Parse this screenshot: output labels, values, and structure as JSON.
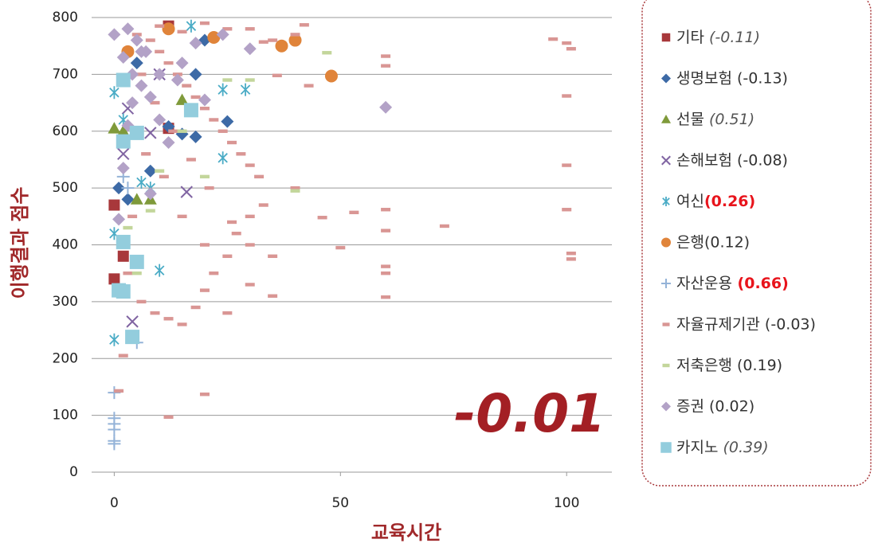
{
  "chart_data": {
    "type": "scatter",
    "x_label": "교육시간",
    "y_label": "이행결과 점수",
    "annotation": "-0.01",
    "xlim": [
      -5,
      110
    ],
    "xticks": [
      0,
      50,
      100
    ],
    "ylim": [
      0,
      800
    ],
    "yticks": [
      0,
      100,
      200,
      300,
      400,
      500,
      600,
      700,
      800
    ],
    "grid": true,
    "legend": "right",
    "series": [
      {
        "name": "기타",
        "note": " (-0.11)",
        "note_style": "italic",
        "marker": "square",
        "color": "#a8383b",
        "x": [
          0,
          0,
          12,
          12,
          2
        ],
        "values": [
          470,
          340,
          605,
          785,
          380
        ]
      },
      {
        "name": "생명보험",
        "note": " (-0.13)",
        "note_style": "normal",
        "marker": "diamond",
        "color": "#3d6aa6",
        "x": [
          25,
          18,
          15,
          12,
          8,
          3,
          18,
          20,
          5,
          1
        ],
        "values": [
          617,
          700,
          595,
          608,
          530,
          480,
          590,
          760,
          720,
          500
        ]
      },
      {
        "name": "선물",
        "note": " (0.51)",
        "note_style": "italic",
        "marker": "triangle",
        "color": "#7f9a3a",
        "x": [
          0,
          5,
          15,
          2,
          8
        ],
        "values": [
          605,
          480,
          655,
          600,
          480
        ]
      },
      {
        "name": "손해보험",
        "note": " (-0.08)",
        "note_style": "normal",
        "marker": "x",
        "color": "#8064a2",
        "x": [
          4,
          8,
          16,
          2,
          3,
          10
        ],
        "values": [
          265,
          597,
          493,
          560,
          640,
          700
        ]
      },
      {
        "name": "여신",
        "note": "(0.26)",
        "note_style": "bold-red",
        "marker": "asterisk",
        "color": "#4bacc6",
        "x": [
          0,
          0,
          24,
          29,
          10,
          17,
          6,
          8,
          0,
          24,
          2
        ],
        "values": [
          233,
          668,
          553,
          673,
          355,
          785,
          510,
          500,
          420,
          673,
          620
        ]
      },
      {
        "name": "은행",
        "note": "(0.12)",
        "note_style": "normal",
        "marker": "circle",
        "color": "#e0843a",
        "x": [
          37,
          40,
          48,
          12,
          3,
          22
        ],
        "values": [
          750,
          760,
          697,
          780,
          740,
          765
        ]
      },
      {
        "name": "자산운용",
        "note": " (0.66)",
        "note_style": "bold-red",
        "marker": "plus",
        "color": "#94b3d8",
        "x": [
          0,
          0,
          0,
          0,
          0,
          0,
          5,
          2,
          3
        ],
        "values": [
          140,
          95,
          85,
          75,
          55,
          50,
          228,
          520,
          500
        ]
      },
      {
        "name": "자율규제기관",
        "note": " (-0.03)",
        "note_style": "normal",
        "marker": "dash",
        "color": "#d99694",
        "x": [
          97,
          100,
          101,
          100,
          100,
          100,
          101,
          101,
          73,
          60,
          60,
          60,
          60,
          60,
          60,
          60,
          53,
          50,
          46,
          42,
          40,
          43,
          40,
          36,
          33,
          20,
          12,
          1,
          2,
          5,
          8,
          10,
          12,
          14,
          16,
          18,
          20,
          22,
          24,
          26,
          28,
          30,
          32,
          6,
          9,
          12,
          15,
          18,
          20,
          22,
          25,
          27,
          30,
          33,
          35,
          30,
          25,
          20,
          15,
          10,
          6,
          9,
          13,
          17,
          21,
          26,
          30,
          35,
          35,
          30,
          25,
          20,
          15,
          11,
          7,
          4,
          3
        ],
        "values": [
          762,
          755,
          745,
          662,
          540,
          462,
          385,
          375,
          433,
          732,
          715,
          462,
          425,
          362,
          350,
          308,
          457,
          395,
          448,
          787,
          770,
          680,
          500,
          698,
          757,
          137,
          97,
          143,
          205,
          770,
          760,
          740,
          720,
          700,
          680,
          660,
          640,
          620,
          600,
          580,
          560,
          540,
          520,
          300,
          280,
          270,
          260,
          290,
          320,
          350,
          380,
          420,
          450,
          470,
          760,
          780,
          780,
          790,
          775,
          785,
          700,
          650,
          600,
          550,
          500,
          440,
          400,
          380,
          310,
          330,
          280,
          400,
          450,
          520,
          560,
          450,
          350
        ]
      },
      {
        "name": "저축은행",
        "note": " (0.19)",
        "note_style": "normal",
        "marker": "dash",
        "color": "#c3d69b",
        "x": [
          40,
          30,
          25,
          10,
          5,
          47,
          15,
          3,
          20,
          8
        ],
        "values": [
          495,
          690,
          690,
          530,
          350,
          738,
          600,
          430,
          520,
          460
        ]
      },
      {
        "name": "증권",
        "note": " (0.02)",
        "note_style": "normal",
        "marker": "diamond",
        "color": "#b3a2c7",
        "x": [
          60,
          0,
          3,
          5,
          7,
          2,
          4,
          6,
          8,
          10,
          12,
          15,
          18,
          24,
          30,
          20,
          3,
          2,
          8,
          1,
          4,
          10,
          14,
          6
        ],
        "values": [
          642,
          770,
          780,
          760,
          740,
          730,
          700,
          680,
          660,
          620,
          580,
          720,
          755,
          770,
          745,
          655,
          610,
          535,
          490,
          445,
          650,
          700,
          690,
          740
        ]
      },
      {
        "name": "카지노",
        "note": " (0.39)",
        "note_style": "italic",
        "marker": "square",
        "color": "#93cddd",
        "x": [
          2,
          17,
          5,
          2,
          2,
          5,
          1,
          4,
          2
        ],
        "values": [
          690,
          637,
          597,
          582,
          405,
          370,
          320,
          238,
          318
        ]
      }
    ]
  }
}
